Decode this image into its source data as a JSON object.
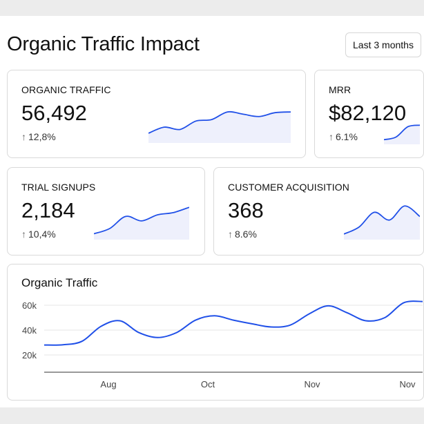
{
  "header": {
    "title": "Organic Traffic Impact",
    "range_label": "Last 3 months"
  },
  "accent": "#2050e8",
  "fill": "#eef0fc",
  "kpis": [
    {
      "label": "ORGANIC TRAFFIC",
      "value": "56,492",
      "delta": "12,8%",
      "trend": [
        10,
        18,
        15,
        26,
        28,
        38,
        35,
        32,
        37,
        38
      ]
    },
    {
      "label": "MRR",
      "value": "$82,120",
      "delta": "6.1%",
      "trend": [
        5,
        10,
        30,
        33
      ]
    },
    {
      "label": "TRIAL SIGNUPS",
      "value": "2,184",
      "delta": "10,4%",
      "trend": [
        5,
        12,
        28,
        22,
        30,
        33,
        40
      ]
    },
    {
      "label": "CUSTOMER ACQUISITION",
      "value": "368",
      "delta": "8.6%",
      "trend": [
        5,
        15,
        36,
        25,
        45,
        30
      ]
    }
  ],
  "chart_data": {
    "type": "line",
    "title": "Organic Traffic",
    "yticks": [
      "20k",
      "40k",
      "60k"
    ],
    "ytick_values": [
      20000,
      40000,
      60000
    ],
    "ylim": [
      6000,
      70000
    ],
    "xticks": [
      "Aug",
      "Oct",
      "Nov",
      "Nov"
    ],
    "grid": true,
    "values": [
      28000,
      28200,
      31000,
      43000,
      47500,
      38000,
      34000,
      38000,
      48000,
      51500,
      48000,
      45000,
      42500,
      44000,
      53000,
      59500,
      54000,
      47500,
      50000,
      62000,
      63000
    ]
  }
}
